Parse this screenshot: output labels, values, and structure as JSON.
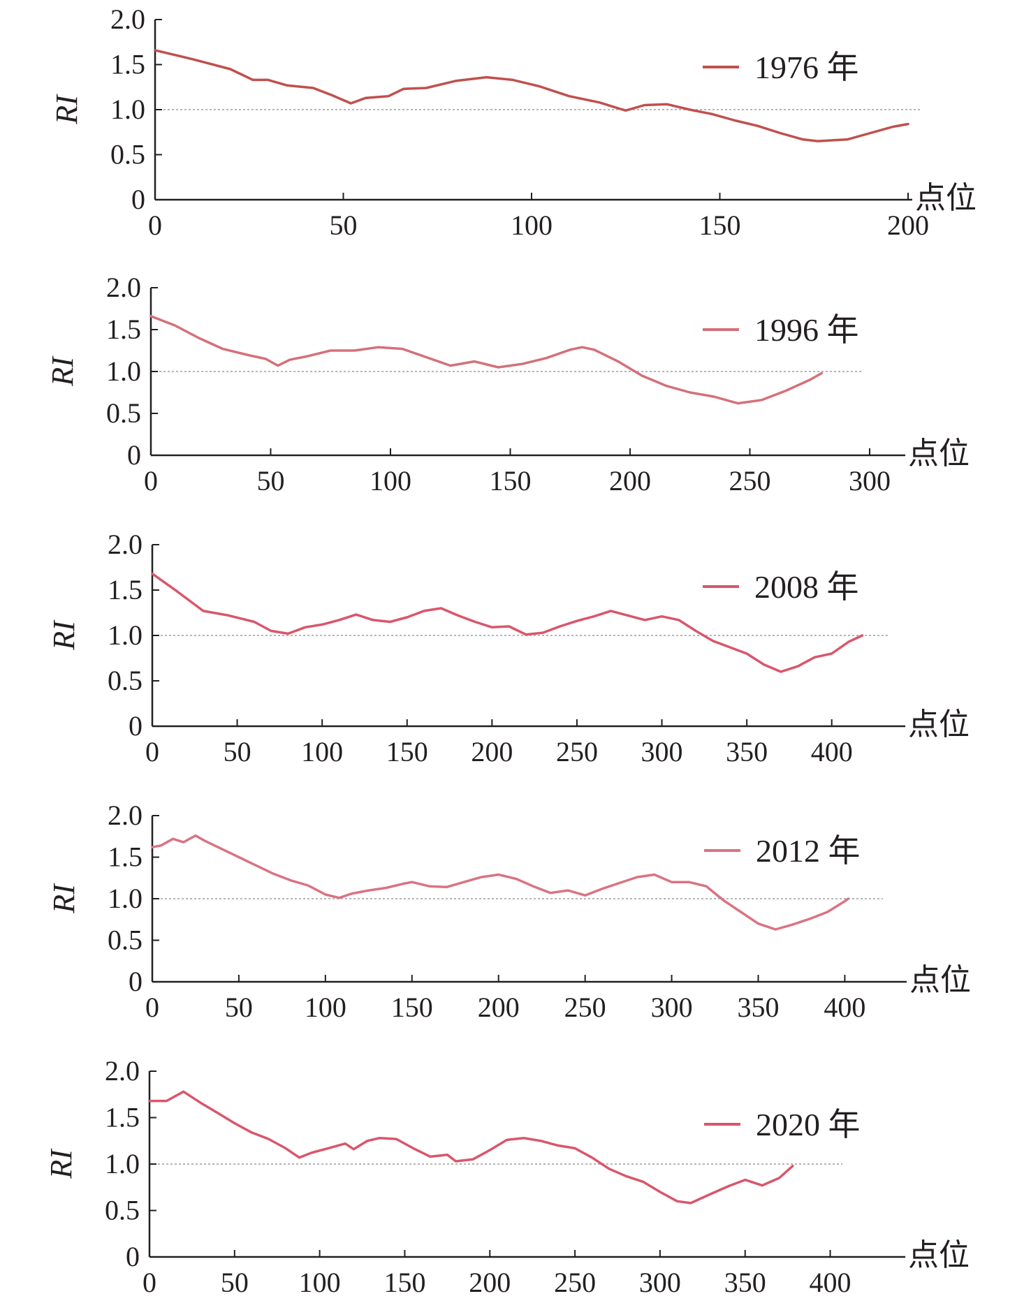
{
  "chart_data": [
    {
      "type": "line",
      "ylabel": "RI",
      "xlabel": "点位",
      "ylim": [
        0,
        2.0
      ],
      "xlim": [
        0,
        200
      ],
      "yticks": [
        "0",
        "0.5",
        "1.0",
        "1.5",
        "2.0"
      ],
      "xticks": [
        "0",
        "50",
        "100",
        "150",
        "200"
      ],
      "reference_line": 1.0,
      "line_color": "#c0504d",
      "series": [
        {
          "name": "1976 年",
          "points": [
            [
              0,
              1.66
            ],
            [
              10,
              1.56
            ],
            [
              20,
              1.45
            ],
            [
              26,
              1.33
            ],
            [
              30,
              1.33
            ],
            [
              35,
              1.27
            ],
            [
              42,
              1.24
            ],
            [
              47,
              1.16
            ],
            [
              52,
              1.07
            ],
            [
              56,
              1.13
            ],
            [
              62,
              1.15
            ],
            [
              66,
              1.23
            ],
            [
              72,
              1.24
            ],
            [
              80,
              1.32
            ],
            [
              88,
              1.36
            ],
            [
              95,
              1.33
            ],
            [
              102,
              1.26
            ],
            [
              110,
              1.15
            ],
            [
              118,
              1.08
            ],
            [
              125,
              0.99
            ],
            [
              130,
              1.05
            ],
            [
              136,
              1.06
            ],
            [
              142,
              1.0
            ],
            [
              148,
              0.95
            ],
            [
              154,
              0.88
            ],
            [
              160,
              0.82
            ],
            [
              166,
              0.74
            ],
            [
              172,
              0.67
            ],
            [
              176,
              0.65
            ],
            [
              184,
              0.67
            ],
            [
              190,
              0.74
            ],
            [
              196,
              0.81
            ],
            [
              200,
              0.84
            ]
          ]
        }
      ]
    },
    {
      "type": "line",
      "ylabel": "RI",
      "xlabel": "点位",
      "ylim": [
        0,
        2.0
      ],
      "xlim": [
        0,
        300
      ],
      "yticks": [
        "0",
        "0.5",
        "1.0",
        "1.5",
        "2.0"
      ],
      "xticks": [
        "0",
        "50",
        "100",
        "150",
        "200",
        "250",
        "300"
      ],
      "reference_line": 1.0,
      "line_color": "#d4707a",
      "series": [
        {
          "name": "1996 年",
          "points": [
            [
              0,
              1.66
            ],
            [
              10,
              1.55
            ],
            [
              20,
              1.4
            ],
            [
              30,
              1.27
            ],
            [
              40,
              1.2
            ],
            [
              48,
              1.15
            ],
            [
              53,
              1.07
            ],
            [
              58,
              1.14
            ],
            [
              65,
              1.18
            ],
            [
              75,
              1.25
            ],
            [
              85,
              1.25
            ],
            [
              95,
              1.29
            ],
            [
              105,
              1.27
            ],
            [
              115,
              1.17
            ],
            [
              125,
              1.07
            ],
            [
              135,
              1.12
            ],
            [
              145,
              1.05
            ],
            [
              155,
              1.09
            ],
            [
              165,
              1.16
            ],
            [
              175,
              1.26
            ],
            [
              180,
              1.29
            ],
            [
              185,
              1.26
            ],
            [
              195,
              1.12
            ],
            [
              205,
              0.95
            ],
            [
              215,
              0.83
            ],
            [
              225,
              0.75
            ],
            [
              235,
              0.7
            ],
            [
              245,
              0.62
            ],
            [
              255,
              0.66
            ],
            [
              265,
              0.77
            ],
            [
              275,
              0.9
            ],
            [
              280,
              0.98
            ]
          ]
        }
      ]
    },
    {
      "type": "line",
      "ylabel": "RI",
      "xlabel": "点位",
      "ylim": [
        0,
        2.0
      ],
      "xlim": [
        0,
        440
      ],
      "yticks": [
        "0",
        "0.5",
        "1.0",
        "1.5",
        "2.0"
      ],
      "xticks": [
        "0",
        "50",
        "100",
        "150",
        "200",
        "250",
        "300",
        "350",
        "400"
      ],
      "reference_line": 1.0,
      "line_color": "#d9566b",
      "series": [
        {
          "name": "2008 年",
          "points": [
            [
              0,
              1.68
            ],
            [
              15,
              1.48
            ],
            [
              30,
              1.27
            ],
            [
              45,
              1.22
            ],
            [
              60,
              1.15
            ],
            [
              70,
              1.05
            ],
            [
              80,
              1.02
            ],
            [
              90,
              1.09
            ],
            [
              100,
              1.12
            ],
            [
              110,
              1.17
            ],
            [
              120,
              1.23
            ],
            [
              130,
              1.17
            ],
            [
              140,
              1.15
            ],
            [
              150,
              1.2
            ],
            [
              160,
              1.27
            ],
            [
              170,
              1.3
            ],
            [
              180,
              1.22
            ],
            [
              190,
              1.15
            ],
            [
              200,
              1.09
            ],
            [
              210,
              1.1
            ],
            [
              220,
              1.01
            ],
            [
              230,
              1.03
            ],
            [
              240,
              1.1
            ],
            [
              250,
              1.16
            ],
            [
              260,
              1.21
            ],
            [
              270,
              1.27
            ],
            [
              280,
              1.22
            ],
            [
              290,
              1.17
            ],
            [
              300,
              1.21
            ],
            [
              310,
              1.17
            ],
            [
              320,
              1.05
            ],
            [
              330,
              0.94
            ],
            [
              340,
              0.87
            ],
            [
              350,
              0.8
            ],
            [
              360,
              0.68
            ],
            [
              370,
              0.6
            ],
            [
              380,
              0.66
            ],
            [
              390,
              0.76
            ],
            [
              400,
              0.8
            ],
            [
              410,
              0.93
            ],
            [
              418,
              1.0
            ]
          ]
        }
      ]
    },
    {
      "type": "line",
      "ylabel": "RI",
      "xlabel": "点位",
      "ylim": [
        0,
        2.0
      ],
      "xlim": [
        0,
        420
      ],
      "yticks": [
        "0",
        "0.5",
        "1.0",
        "1.5",
        "2.0"
      ],
      "xticks": [
        "0",
        "50",
        "100",
        "150",
        "200",
        "250",
        "300",
        "350",
        "400"
      ],
      "reference_line": 1.0,
      "line_color": "#d97382",
      "series": [
        {
          "name": "2012 年",
          "points": [
            [
              0,
              1.62
            ],
            [
              5,
              1.64
            ],
            [
              12,
              1.72
            ],
            [
              18,
              1.68
            ],
            [
              25,
              1.76
            ],
            [
              30,
              1.7
            ],
            [
              40,
              1.6
            ],
            [
              50,
              1.5
            ],
            [
              60,
              1.4
            ],
            [
              70,
              1.3
            ],
            [
              80,
              1.22
            ],
            [
              90,
              1.16
            ],
            [
              100,
              1.05
            ],
            [
              108,
              1.01
            ],
            [
              115,
              1.06
            ],
            [
              125,
              1.1
            ],
            [
              135,
              1.13
            ],
            [
              145,
              1.18
            ],
            [
              150,
              1.2
            ],
            [
              160,
              1.15
            ],
            [
              170,
              1.14
            ],
            [
              180,
              1.2
            ],
            [
              190,
              1.26
            ],
            [
              200,
              1.29
            ],
            [
              210,
              1.24
            ],
            [
              220,
              1.15
            ],
            [
              230,
              1.07
            ],
            [
              240,
              1.1
            ],
            [
              250,
              1.04
            ],
            [
              260,
              1.12
            ],
            [
              270,
              1.19
            ],
            [
              280,
              1.26
            ],
            [
              290,
              1.29
            ],
            [
              300,
              1.2
            ],
            [
              310,
              1.2
            ],
            [
              320,
              1.15
            ],
            [
              330,
              0.98
            ],
            [
              340,
              0.84
            ],
            [
              350,
              0.7
            ],
            [
              360,
              0.63
            ],
            [
              370,
              0.69
            ],
            [
              380,
              0.76
            ],
            [
              390,
              0.84
            ],
            [
              400,
              0.97
            ],
            [
              402,
              1.0
            ]
          ]
        }
      ]
    },
    {
      "type": "line",
      "ylabel": "RI",
      "xlabel": "点位",
      "ylim": [
        0,
        2.0
      ],
      "xlim": [
        0,
        440
      ],
      "yticks": [
        "0",
        "0.5",
        "1.0",
        "1.5",
        "2.0"
      ],
      "xticks": [
        "0",
        "50",
        "100",
        "150",
        "200",
        "250",
        "300",
        "350",
        "400"
      ],
      "reference_line": 1.0,
      "line_color": "#d9566b",
      "series": [
        {
          "name": "2020 年",
          "points": [
            [
              0,
              1.68
            ],
            [
              10,
              1.68
            ],
            [
              20,
              1.78
            ],
            [
              30,
              1.66
            ],
            [
              40,
              1.55
            ],
            [
              50,
              1.44
            ],
            [
              60,
              1.34
            ],
            [
              70,
              1.27
            ],
            [
              80,
              1.17
            ],
            [
              88,
              1.07
            ],
            [
              95,
              1.12
            ],
            [
              105,
              1.17
            ],
            [
              115,
              1.22
            ],
            [
              120,
              1.16
            ],
            [
              128,
              1.25
            ],
            [
              135,
              1.28
            ],
            [
              145,
              1.27
            ],
            [
              155,
              1.17
            ],
            [
              165,
              1.08
            ],
            [
              175,
              1.1
            ],
            [
              180,
              1.03
            ],
            [
              190,
              1.05
            ],
            [
              200,
              1.15
            ],
            [
              210,
              1.26
            ],
            [
              220,
              1.28
            ],
            [
              230,
              1.25
            ],
            [
              240,
              1.2
            ],
            [
              250,
              1.17
            ],
            [
              260,
              1.07
            ],
            [
              270,
              0.95
            ],
            [
              280,
              0.87
            ],
            [
              290,
              0.81
            ],
            [
              300,
              0.7
            ],
            [
              310,
              0.6
            ],
            [
              318,
              0.58
            ],
            [
              330,
              0.68
            ],
            [
              340,
              0.76
            ],
            [
              350,
              0.83
            ],
            [
              360,
              0.77
            ],
            [
              370,
              0.85
            ],
            [
              378,
              0.98
            ]
          ]
        }
      ]
    }
  ]
}
